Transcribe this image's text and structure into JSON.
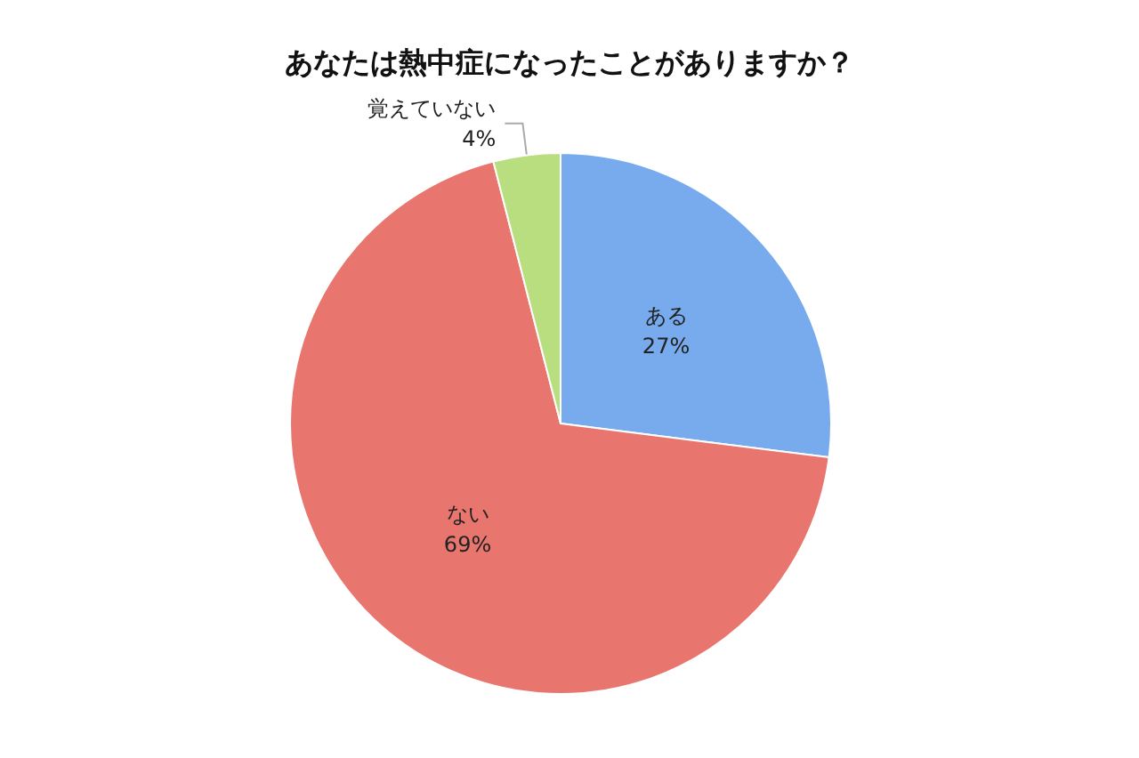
{
  "chart_data": {
    "type": "pie",
    "title": "あなたは熱中症になったことがありますか？",
    "categories": [
      "ある",
      "ない",
      "覚えていない"
    ],
    "values": [
      27,
      69,
      4
    ],
    "value_labels": [
      "27%",
      "69%",
      "4%"
    ],
    "colors": [
      "#78abee",
      "#e9756f",
      "#b9de80"
    ]
  }
}
